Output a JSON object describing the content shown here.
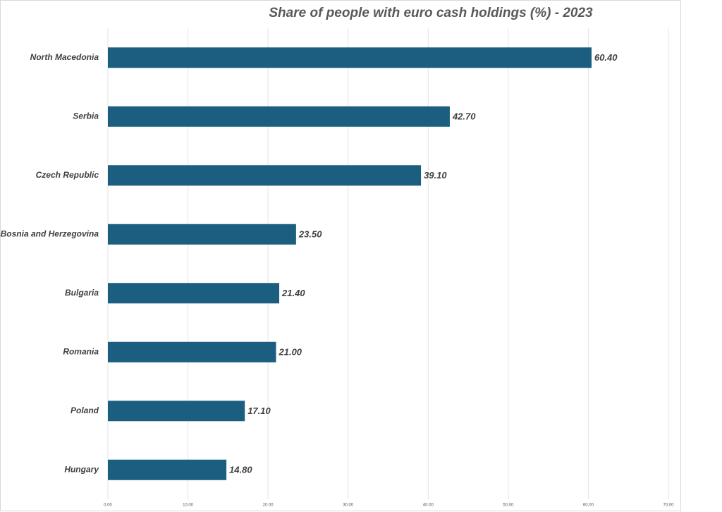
{
  "chart_data": {
    "type": "bar",
    "orientation": "horizontal",
    "title": "Share of people with euro cash holdings (%) - 2023",
    "categories": [
      "North Macedonia",
      "Serbia",
      "Czech Republic",
      "Bosnia and Herzegovina",
      "Bulgaria",
      "Romania",
      "Poland",
      "Hungary"
    ],
    "values": [
      60.4,
      42.7,
      39.1,
      23.5,
      21.4,
      21.0,
      17.1,
      14.8
    ],
    "value_labels": [
      "60.40",
      "42.70",
      "39.10",
      "23.50",
      "21.40",
      "21.00",
      "17.10",
      "14.80"
    ],
    "color": "#1b5e7f",
    "xlim": [
      0,
      70
    ],
    "xticks": [
      {
        "value": 0,
        "label": "0.00"
      },
      {
        "value": 10,
        "label": "10.00"
      },
      {
        "value": 20,
        "label": "20.00"
      },
      {
        "value": 30,
        "label": "30.00"
      },
      {
        "value": 40,
        "label": "40.00"
      },
      {
        "value": 50,
        "label": "50.00"
      },
      {
        "value": 60,
        "label": "60.00"
      },
      {
        "value": 70,
        "label": "70.00"
      }
    ],
    "grid": true
  }
}
